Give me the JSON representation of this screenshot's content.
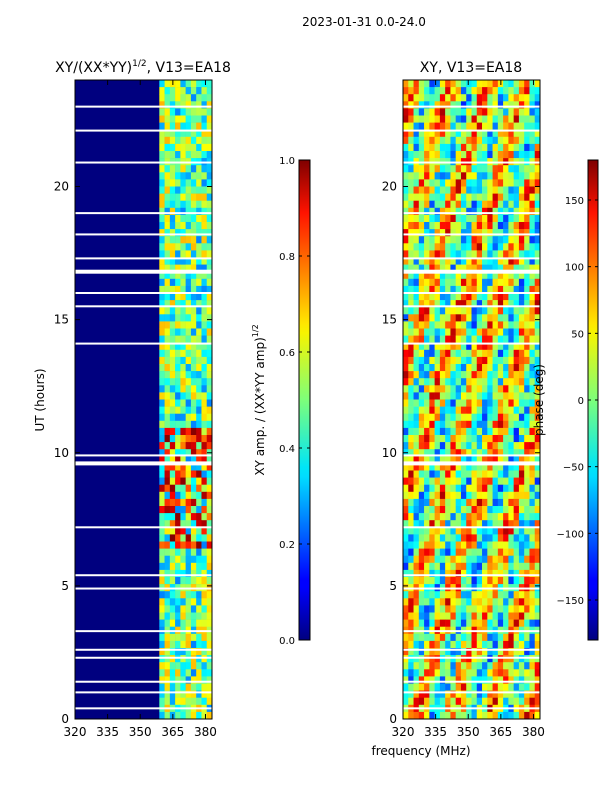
{
  "figure": {
    "suptitle": "2023-01-31 0.0-24.0",
    "shared_xlabel": "frequency (MHz)"
  },
  "chart_data": [
    {
      "type": "heatmap",
      "title": "XY/(XX*YY)^1/2, V13=EA18",
      "title_main": "XY/(XX*YY)",
      "title_sup": "1/2",
      "title_tail": ", V13=EA18",
      "ylabel": "UT (hours)",
      "xlim": [
        320,
        383
      ],
      "ylim": [
        0,
        24
      ],
      "xticks": [
        320,
        335,
        350,
        365,
        380
      ],
      "yticks": [
        0,
        5,
        10,
        15,
        20
      ],
      "colorbar": {
        "label_main": "XY amp. / (XX*YY amp)",
        "label_sup": "1/2",
        "range": [
          0.0,
          1.0
        ],
        "ticks": [
          "0.0",
          "0.2",
          "0.4",
          "0.6",
          "0.8",
          "1.0"
        ],
        "tick_values": [
          0.0,
          0.2,
          0.4,
          0.6,
          0.8,
          1.0
        ],
        "colormap": "jet"
      }
    },
    {
      "type": "heatmap",
      "title": "XY, V13=EA18",
      "xlim": [
        320,
        383
      ],
      "ylim": [
        0,
        24
      ],
      "xticks": [
        320,
        335,
        350,
        365,
        380
      ],
      "yticks": [
        0,
        5,
        10,
        15,
        20
      ],
      "colorbar": {
        "label": "phase (deg)",
        "range": [
          -180,
          180
        ],
        "ticks": [
          "150",
          "100",
          "50",
          "0",
          "−50",
          "−100",
          "−150"
        ],
        "tick_values": [
          150,
          100,
          50,
          0,
          -50,
          -100,
          -150
        ],
        "colormap": "jet"
      }
    }
  ]
}
